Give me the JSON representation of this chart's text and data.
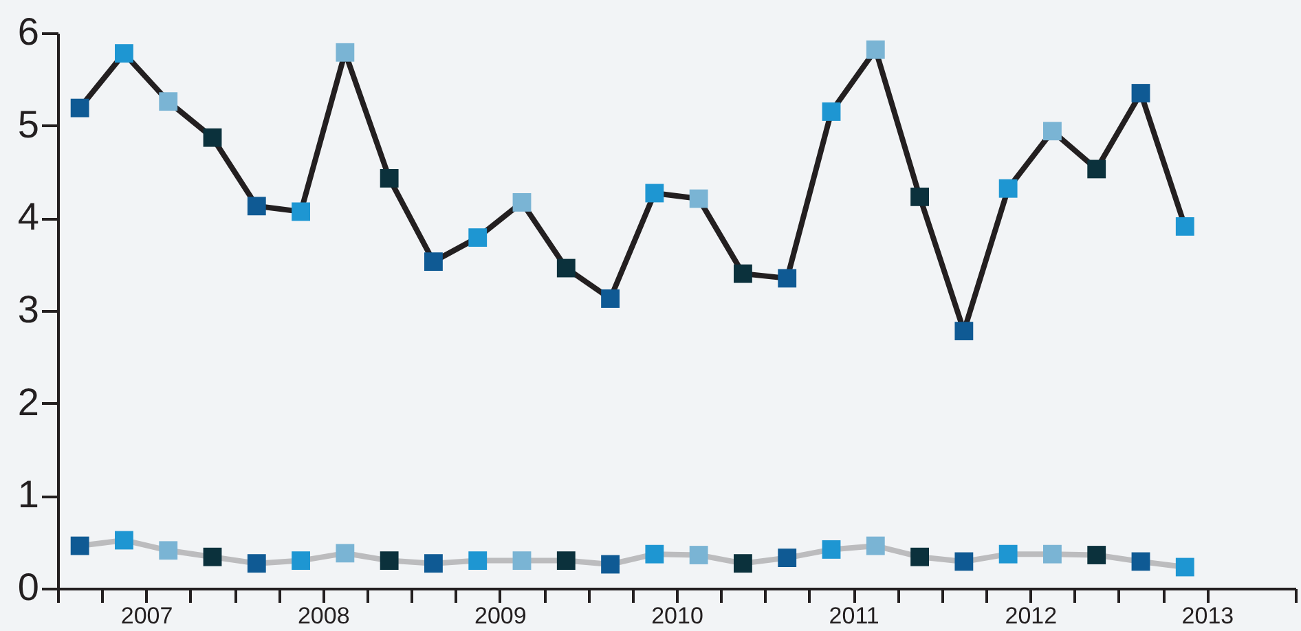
{
  "chart_data": {
    "type": "line",
    "marker": "square",
    "line_style": "solid",
    "grid": false,
    "x": [
      2007.125,
      2007.375,
      2007.625,
      2007.875,
      2008.125,
      2008.375,
      2008.625,
      2008.875,
      2009.125,
      2009.375,
      2009.625,
      2009.875,
      2010.125,
      2010.375,
      2010.625,
      2010.875,
      2011.125,
      2011.375,
      2011.625,
      2011.875,
      2012.125,
      2012.375,
      2012.625,
      2012.875,
      2013.125,
      2013.375
    ],
    "xlim": [
      2007,
      2014
    ],
    "xticks": [
      {
        "value": 2007,
        "label": null
      },
      {
        "value": 2007.25,
        "label": null
      },
      {
        "value": 2007.5,
        "label": "2007"
      },
      {
        "value": 2007.75,
        "label": null
      },
      {
        "value": 2008,
        "label": null
      },
      {
        "value": 2008.25,
        "label": null
      },
      {
        "value": 2008.5,
        "label": "2008"
      },
      {
        "value": 2008.75,
        "label": null
      },
      {
        "value": 2009,
        "label": null
      },
      {
        "value": 2009.25,
        "label": null
      },
      {
        "value": 2009.5,
        "label": "2009"
      },
      {
        "value": 2009.75,
        "label": null
      },
      {
        "value": 2010,
        "label": null
      },
      {
        "value": 2010.25,
        "label": null
      },
      {
        "value": 2010.5,
        "label": "2010"
      },
      {
        "value": 2010.75,
        "label": null
      },
      {
        "value": 2011,
        "label": null
      },
      {
        "value": 2011.25,
        "label": null
      },
      {
        "value": 2011.5,
        "label": "2011"
      },
      {
        "value": 2011.75,
        "label": null
      },
      {
        "value": 2012,
        "label": null
      },
      {
        "value": 2012.25,
        "label": null
      },
      {
        "value": 2012.5,
        "label": "2012"
      },
      {
        "value": 2012.75,
        "label": null
      },
      {
        "value": 2013,
        "label": null
      },
      {
        "value": 2013.25,
        "label": null
      },
      {
        "value": 2013.5,
        "label": "2013"
      },
      {
        "value": 2014,
        "label": null
      }
    ],
    "ylim": [
      0,
      6
    ],
    "yticks": [
      0,
      1,
      2,
      3,
      4,
      5,
      6
    ],
    "series": [
      {
        "color": "#231f20",
        "values": [
          5.19,
          5.78,
          5.26,
          4.87,
          4.13,
          4.07,
          5.79,
          4.43,
          3.53,
          3.79,
          4.17,
          3.46,
          3.13,
          4.27,
          4.21,
          3.4,
          3.35,
          5.15,
          5.82,
          4.23,
          2.78,
          4.32,
          4.94,
          4.53,
          5.35,
          3.91
        ],
        "colors": [
          "#0f5a94",
          "#1e96d2",
          "#7ab4d4",
          "#0b313c",
          "#0f5a94",
          "#1e96d2",
          "#7ab4d4",
          "#0b313c",
          "#0f5a94",
          "#1e96d2",
          "#7ab4d4",
          "#0b313c",
          "#0f5a94",
          "#1e96d2",
          "#7ab4d4",
          "#0b313c",
          "#0f5a94",
          "#1e96d2",
          "#7ab4d4",
          "#0b313c",
          "#0f5a94",
          "#1e96d2",
          "#7ab4d4",
          "#0b313c",
          "#0f5a94",
          "#1e96d2"
        ]
      },
      {
        "color": "#bcbcbe",
        "values": [
          0.46,
          0.52,
          0.41,
          0.34,
          0.27,
          0.3,
          0.38,
          0.3,
          0.27,
          0.3,
          0.3,
          0.3,
          0.26,
          0.37,
          0.36,
          0.27,
          0.33,
          0.42,
          0.46,
          0.34,
          0.29,
          0.37,
          0.37,
          0.36,
          0.29,
          0.23
        ],
        "colors": [
          "#0f5a94",
          "#1e96d2",
          "#7ab4d4",
          "#0b313c",
          "#0f5a94",
          "#1e96d2",
          "#7ab4d4",
          "#0b313c",
          "#0f5a94",
          "#1e96d2",
          "#7ab4d4",
          "#0b313c",
          "#0f5a94",
          "#1e96d2",
          "#7ab4d4",
          "#0b313c",
          "#0f5a94",
          "#1e96d2",
          "#7ab4d4",
          "#0b313c",
          "#0f5a94",
          "#1e96d2",
          "#7ab4d4",
          "#0b313c",
          "#0f5a94",
          "#1e96d2"
        ]
      }
    ]
  }
}
